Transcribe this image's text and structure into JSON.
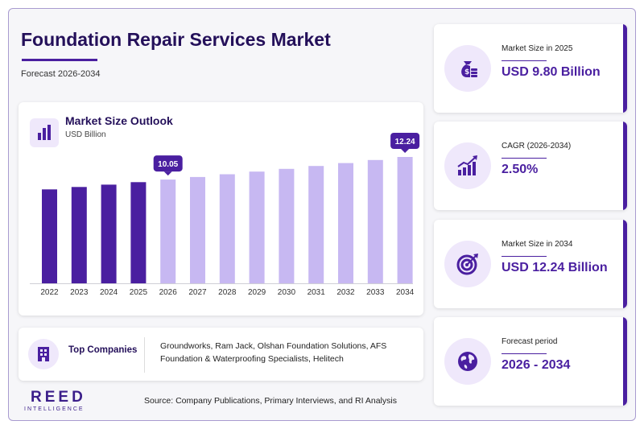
{
  "header": {
    "title": "Foundation Repair Services Market",
    "subtitle": "Forecast 2026-2034"
  },
  "chart_data": {
    "type": "bar",
    "title": "Market Size Outlook",
    "ylabel": "USD Billion",
    "categories": [
      "2022",
      "2023",
      "2024",
      "2025",
      "2026",
      "2027",
      "2028",
      "2029",
      "2030",
      "2031",
      "2032",
      "2033",
      "2034"
    ],
    "values": [
      9.1,
      9.33,
      9.56,
      9.8,
      10.05,
      10.3,
      10.56,
      10.82,
      11.09,
      11.37,
      11.65,
      11.94,
      12.24
    ],
    "historical_years": [
      "2022",
      "2023",
      "2024",
      "2025"
    ],
    "callouts": [
      {
        "category": "2026",
        "label": "10.05"
      },
      {
        "category": "2034",
        "label": "12.24"
      }
    ],
    "colors": {
      "historical": "#4a1fa0",
      "forecast": "#c7b8f2",
      "callout": "#4a1fa0"
    },
    "grid": false
  },
  "companies": {
    "label": "Top Companies",
    "list": "Groundworks, Ram Jack, Olshan Foundation Solutions, AFS Foundation & Waterproofing Specialists, Helitech"
  },
  "stats": [
    {
      "label": "Market Size in 2025",
      "value": "USD 9.80 Billion",
      "icon": "money-bag-icon"
    },
    {
      "label": "CAGR (2026-2034)",
      "value": "2.50%",
      "icon": "growth-chart-icon"
    },
    {
      "label": "Market Size in 2034",
      "value": "USD 12.24 Billion",
      "icon": "target-icon"
    },
    {
      "label": "Forecast period",
      "value": "2026 - 2034",
      "icon": "globe-icon"
    }
  ],
  "footer": {
    "logo_main": "REED",
    "logo_sub": "INTELLIGENCE",
    "source": "Source: Company Publications, Primary Interviews, and RI Analysis"
  }
}
